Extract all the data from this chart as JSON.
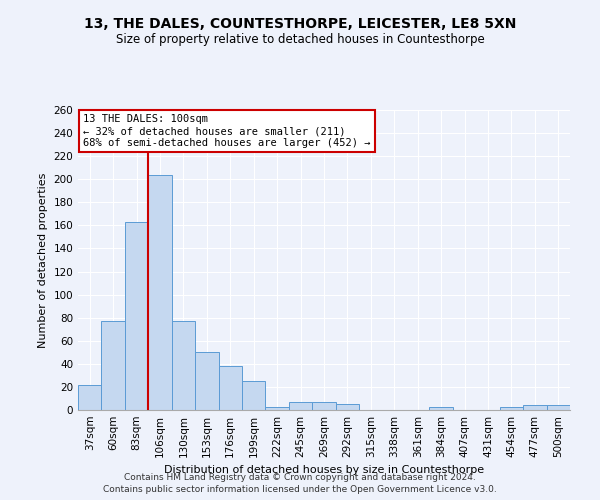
{
  "title": "13, THE DALES, COUNTESTHORPE, LEICESTER, LE8 5XN",
  "subtitle": "Size of property relative to detached houses in Countesthorpe",
  "xlabel": "Distribution of detached houses by size in Countesthorpe",
  "ylabel": "Number of detached properties",
  "bar_labels": [
    "37sqm",
    "60sqm",
    "83sqm",
    "106sqm",
    "130sqm",
    "153sqm",
    "176sqm",
    "199sqm",
    "222sqm",
    "245sqm",
    "269sqm",
    "292sqm",
    "315sqm",
    "338sqm",
    "361sqm",
    "384sqm",
    "407sqm",
    "431sqm",
    "454sqm",
    "477sqm",
    "500sqm"
  ],
  "bar_values": [
    22,
    77,
    163,
    204,
    77,
    50,
    38,
    25,
    3,
    7,
    7,
    5,
    0,
    0,
    0,
    3,
    0,
    0,
    3,
    4,
    4
  ],
  "bar_color": "#c5d8f0",
  "bar_edge_color": "#5b9bd5",
  "annotation_title": "13 THE DALES: 100sqm",
  "annotation_line1": "← 32% of detached houses are smaller (211)",
  "annotation_line2": "68% of semi-detached houses are larger (452) →",
  "annotation_box_color": "#cc0000",
  "vline_color": "#cc0000",
  "vline_x_index": 3,
  "ylim": [
    0,
    260
  ],
  "yticks": [
    0,
    20,
    40,
    60,
    80,
    100,
    120,
    140,
    160,
    180,
    200,
    220,
    240,
    260
  ],
  "background_color": "#eef2fb",
  "grid_color": "#ffffff",
  "footer1": "Contains HM Land Registry data © Crown copyright and database right 2024.",
  "footer2": "Contains public sector information licensed under the Open Government Licence v3.0."
}
